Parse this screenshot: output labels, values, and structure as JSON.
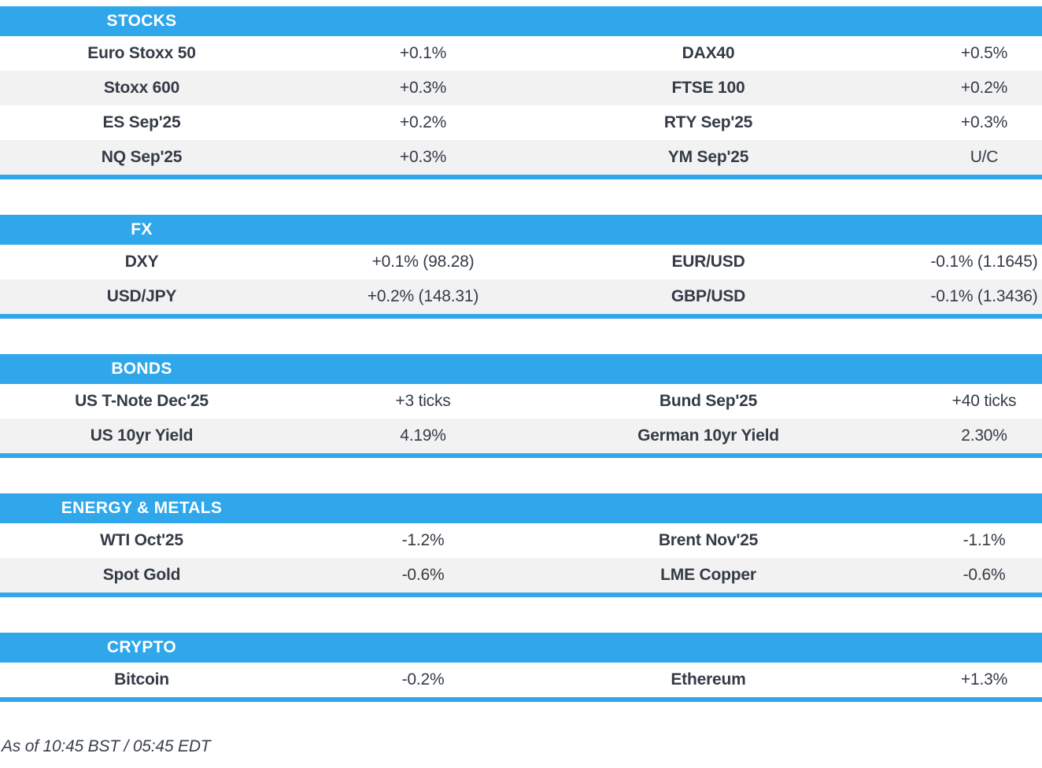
{
  "accent_color": "#2fa7ea",
  "row_alt_color": "#f2f2f2",
  "text_color": "#343b46",
  "sections": [
    {
      "title": "STOCKS",
      "rows": [
        [
          "Euro Stoxx 50",
          "+0.1%",
          "DAX40",
          "+0.5%"
        ],
        [
          "Stoxx 600",
          "+0.3%",
          "FTSE 100",
          "+0.2%"
        ],
        [
          "ES Sep'25",
          "+0.2%",
          "RTY Sep'25",
          "+0.3%"
        ],
        [
          "NQ Sep'25",
          "+0.3%",
          "YM Sep'25",
          "U/C"
        ]
      ]
    },
    {
      "title": "FX",
      "rows": [
        [
          "DXY",
          "+0.1% (98.28)",
          "EUR/USD",
          "-0.1% (1.1645)"
        ],
        [
          "USD/JPY",
          "+0.2% (148.31)",
          "GBP/USD",
          "-0.1% (1.3436)"
        ]
      ]
    },
    {
      "title": "BONDS",
      "rows": [
        [
          "US T-Note Dec'25",
          "+3 ticks",
          "Bund Sep'25",
          "+40 ticks"
        ],
        [
          "US 10yr Yield",
          "4.19%",
          "German 10yr Yield",
          "2.30%"
        ]
      ]
    },
    {
      "title": "ENERGY & METALS",
      "rows": [
        [
          "WTI Oct'25",
          "-1.2%",
          "Brent Nov'25",
          "-1.1%"
        ],
        [
          "Spot Gold",
          "-0.6%",
          "LME Copper",
          "-0.6%"
        ]
      ]
    },
    {
      "title": "CRYPTO",
      "rows": [
        [
          "Bitcoin",
          "-0.2%",
          "Ethereum",
          "+1.3%"
        ]
      ]
    }
  ],
  "footer": {
    "as_of": "As of 10:45 BST / 05:45 EDT"
  }
}
